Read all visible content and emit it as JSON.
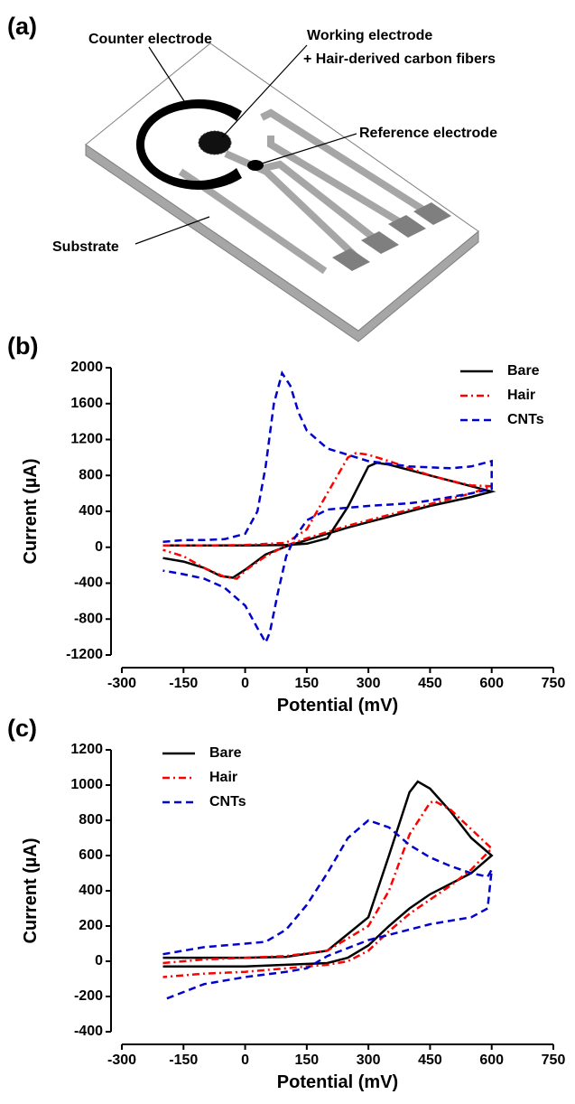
{
  "diagram": {
    "label": "(a)",
    "counter": "Counter electrode",
    "working": "Working electrode",
    "working_note": "+ Hair-derived carbon fibers",
    "reference": "Reference electrode",
    "substrate": "Substrate"
  },
  "chart_data": [
    {
      "type": "line",
      "panel_label": "(b)",
      "x_label": "Potential (mV)",
      "y_label": "Current (µA)",
      "xlim": [
        -300,
        750
      ],
      "xticks": [
        -300,
        -150,
        0,
        150,
        300,
        450,
        600,
        750
      ],
      "ylim": [
        -1200,
        2000
      ],
      "yticks": [
        -1200,
        -800,
        -400,
        0,
        400,
        800,
        1200,
        1600,
        2000
      ],
      "legend": "upper right",
      "series": [
        {
          "name": "Bare",
          "color": "#000000",
          "x": [
            -200,
            -100,
            0,
            100,
            150,
            200,
            250,
            300,
            320,
            350,
            400,
            450,
            500,
            550,
            600,
            550,
            500,
            450,
            400,
            350,
            300,
            250,
            200,
            150,
            100,
            50,
            0,
            -30,
            -60,
            -100,
            -150,
            -200
          ],
          "values": [
            20,
            20,
            20,
            25,
            40,
            100,
            450,
            900,
            940,
            920,
            860,
            800,
            740,
            680,
            620,
            560,
            510,
            460,
            400,
            340,
            280,
            220,
            150,
            80,
            10,
            -80,
            -250,
            -340,
            -320,
            -230,
            -160,
            -120
          ]
        },
        {
          "name": "Hair",
          "color": "#ff0000",
          "x": [
            -200,
            -100,
            0,
            100,
            150,
            200,
            250,
            270,
            300,
            350,
            400,
            450,
            500,
            550,
            600,
            550,
            500,
            450,
            400,
            350,
            300,
            250,
            200,
            150,
            100,
            50,
            0,
            -20,
            -50,
            -100,
            -150,
            -200
          ],
          "values": [
            20,
            20,
            25,
            50,
            200,
            600,
            1000,
            1050,
            1030,
            960,
            880,
            800,
            740,
            690,
            680,
            600,
            540,
            480,
            420,
            360,
            300,
            240,
            170,
            100,
            20,
            -100,
            -260,
            -350,
            -330,
            -230,
            -100,
            -30
          ]
        },
        {
          "name": "CNTs",
          "color": "#0000cc",
          "x": [
            -200,
            -150,
            -100,
            -50,
            0,
            30,
            50,
            70,
            90,
            110,
            130,
            150,
            200,
            300,
            400,
            500,
            550,
            600,
            600,
            550,
            500,
            450,
            400,
            300,
            200,
            150,
            120,
            100,
            80,
            60,
            50,
            30,
            0,
            -50,
            -100,
            -150,
            -200
          ],
          "values": [
            60,
            80,
            80,
            90,
            150,
            400,
            900,
            1600,
            1940,
            1800,
            1500,
            1300,
            1100,
            960,
            900,
            880,
            900,
            960,
            650,
            600,
            560,
            520,
            490,
            460,
            420,
            300,
            100,
            -100,
            -500,
            -950,
            -1060,
            -900,
            -650,
            -450,
            -350,
            -300,
            -260
          ]
        }
      ]
    },
    {
      "type": "line",
      "panel_label": "(c)",
      "x_label": "Potential (mV)",
      "y_label": "Current (µA)",
      "xlim": [
        -300,
        750
      ],
      "xticks": [
        -300,
        -150,
        0,
        150,
        300,
        450,
        600,
        750
      ],
      "ylim": [
        -400,
        1200
      ],
      "yticks": [
        -400,
        -200,
        0,
        200,
        400,
        600,
        800,
        1000,
        1200
      ],
      "legend": "upper left",
      "series": [
        {
          "name": "Bare",
          "color": "#000000",
          "x": [
            -200,
            -100,
            0,
            100,
            200,
            300,
            350,
            400,
            420,
            450,
            500,
            550,
            600,
            550,
            500,
            450,
            400,
            350,
            300,
            250,
            200,
            100,
            0,
            -100,
            -200
          ],
          "values": [
            20,
            20,
            20,
            25,
            60,
            250,
            600,
            960,
            1020,
            980,
            850,
            700,
            600,
            500,
            440,
            380,
            300,
            200,
            90,
            20,
            -10,
            -20,
            -30,
            -30,
            -30
          ]
        },
        {
          "name": "Hair",
          "color": "#ff0000",
          "x": [
            -200,
            -100,
            0,
            100,
            200,
            300,
            350,
            400,
            450,
            460,
            500,
            550,
            600,
            550,
            500,
            450,
            400,
            350,
            300,
            250,
            200,
            100,
            0,
            -100,
            -200
          ],
          "values": [
            -10,
            10,
            20,
            30,
            60,
            200,
            400,
            720,
            900,
            910,
            860,
            750,
            640,
            520,
            430,
            350,
            270,
            170,
            60,
            0,
            -20,
            -40,
            -60,
            -70,
            -90
          ]
        },
        {
          "name": "CNTs",
          "color": "#0000cc",
          "x": [
            -200,
            -100,
            0,
            50,
            100,
            150,
            200,
            250,
            300,
            350,
            400,
            450,
            500,
            550,
            590,
            600,
            590,
            550,
            500,
            450,
            400,
            300,
            200,
            150,
            100,
            0,
            -100,
            -200
          ],
          "values": [
            40,
            80,
            100,
            110,
            180,
            320,
            500,
            700,
            800,
            760,
            660,
            590,
            540,
            500,
            480,
            520,
            300,
            250,
            230,
            210,
            180,
            120,
            30,
            -40,
            -60,
            -90,
            -130,
            -220
          ]
        }
      ]
    }
  ]
}
